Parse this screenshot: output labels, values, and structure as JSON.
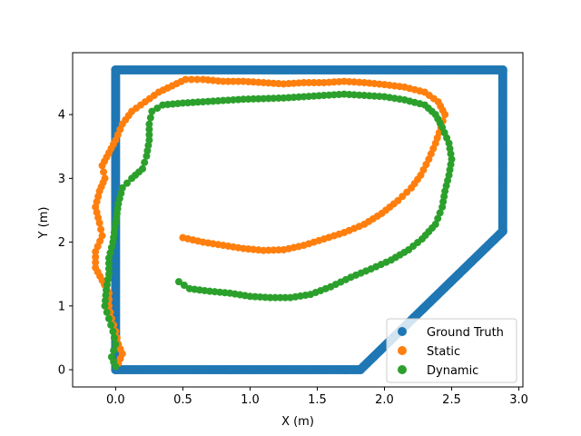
{
  "chart_data": {
    "type": "scatter",
    "title": "",
    "xlabel": "X (m)",
    "ylabel": "Y (m)",
    "xlim": [
      -0.32,
      3.03
    ],
    "ylim": [
      -0.27,
      4.97
    ],
    "x_ticks": [
      0.0,
      0.5,
      1.0,
      1.5,
      2.0,
      2.5,
      3.0
    ],
    "x_tick_labels": [
      "0.0",
      "0.5",
      "1.0",
      "1.5",
      "2.0",
      "2.5",
      "3.0"
    ],
    "y_ticks": [
      0,
      1,
      2,
      3,
      4
    ],
    "y_tick_labels": [
      "0",
      "1",
      "2",
      "3",
      "4"
    ],
    "grid": false,
    "legend_position": "lower-right",
    "series": [
      {
        "name": "Ground Truth",
        "color": "#1f77b4",
        "points": [
          [
            0.0,
            0.0
          ],
          [
            1.82,
            0.0
          ],
          [
            2.88,
            2.17
          ],
          [
            2.88,
            4.7
          ],
          [
            0.0,
            4.7
          ],
          [
            0.0,
            0.0
          ]
        ]
      },
      {
        "name": "Static",
        "color": "#ff7f0e",
        "points": [
          [
            0.5,
            2.07
          ],
          [
            0.65,
            2.0
          ],
          [
            0.8,
            1.95
          ],
          [
            0.95,
            1.9
          ],
          [
            1.1,
            1.87
          ],
          [
            1.25,
            1.88
          ],
          [
            1.4,
            1.95
          ],
          [
            1.55,
            2.05
          ],
          [
            1.7,
            2.15
          ],
          [
            1.85,
            2.28
          ],
          [
            1.98,
            2.45
          ],
          [
            2.1,
            2.65
          ],
          [
            2.2,
            2.85
          ],
          [
            2.27,
            3.05
          ],
          [
            2.33,
            3.3
          ],
          [
            2.38,
            3.55
          ],
          [
            2.42,
            3.8
          ],
          [
            2.45,
            4.0
          ],
          [
            2.4,
            4.2
          ],
          [
            2.3,
            4.35
          ],
          [
            2.15,
            4.43
          ],
          [
            2.0,
            4.47
          ],
          [
            1.85,
            4.5
          ],
          [
            1.7,
            4.52
          ],
          [
            1.55,
            4.5
          ],
          [
            1.4,
            4.5
          ],
          [
            1.25,
            4.48
          ],
          [
            1.1,
            4.5
          ],
          [
            0.95,
            4.52
          ],
          [
            0.8,
            4.52
          ],
          [
            0.65,
            4.55
          ],
          [
            0.52,
            4.55
          ],
          [
            0.42,
            4.45
          ],
          [
            0.32,
            4.35
          ],
          [
            0.22,
            4.2
          ],
          [
            0.12,
            4.05
          ],
          [
            0.05,
            3.85
          ],
          [
            0.0,
            3.6
          ],
          [
            -0.05,
            3.4
          ],
          [
            -0.1,
            3.2
          ],
          [
            -0.08,
            3.0
          ],
          [
            -0.12,
            2.8
          ],
          [
            -0.15,
            2.55
          ],
          [
            -0.12,
            2.3
          ],
          [
            -0.1,
            2.1
          ],
          [
            -0.15,
            1.85
          ],
          [
            -0.15,
            1.6
          ],
          [
            -0.1,
            1.4
          ],
          [
            -0.05,
            1.2
          ],
          [
            -0.05,
            1.0
          ],
          [
            -0.03,
            0.8
          ],
          [
            0.0,
            0.6
          ],
          [
            0.02,
            0.4
          ],
          [
            0.05,
            0.25
          ],
          [
            0.02,
            0.1
          ]
        ]
      },
      {
        "name": "Dynamic",
        "color": "#2ca02c",
        "points": [
          [
            0.47,
            1.38
          ],
          [
            0.55,
            1.27
          ],
          [
            0.7,
            1.23
          ],
          [
            0.85,
            1.2
          ],
          [
            1.0,
            1.15
          ],
          [
            1.15,
            1.13
          ],
          [
            1.3,
            1.13
          ],
          [
            1.45,
            1.18
          ],
          [
            1.6,
            1.3
          ],
          [
            1.75,
            1.45
          ],
          [
            1.9,
            1.58
          ],
          [
            2.05,
            1.72
          ],
          [
            2.18,
            1.88
          ],
          [
            2.28,
            2.05
          ],
          [
            2.38,
            2.28
          ],
          [
            2.43,
            2.55
          ],
          [
            2.45,
            2.8
          ],
          [
            2.48,
            3.05
          ],
          [
            2.5,
            3.3
          ],
          [
            2.48,
            3.55
          ],
          [
            2.43,
            3.8
          ],
          [
            2.38,
            4.0
          ],
          [
            2.3,
            4.15
          ],
          [
            2.15,
            4.23
          ],
          [
            2.0,
            4.28
          ],
          [
            1.85,
            4.3
          ],
          [
            1.7,
            4.32
          ],
          [
            1.55,
            4.3
          ],
          [
            1.4,
            4.28
          ],
          [
            1.25,
            4.26
          ],
          [
            1.1,
            4.25
          ],
          [
            0.95,
            4.24
          ],
          [
            0.8,
            4.22
          ],
          [
            0.65,
            4.2
          ],
          [
            0.5,
            4.18
          ],
          [
            0.35,
            4.15
          ],
          [
            0.27,
            4.05
          ],
          [
            0.25,
            3.85
          ],
          [
            0.25,
            3.6
          ],
          [
            0.23,
            3.35
          ],
          [
            0.2,
            3.15
          ],
          [
            0.12,
            3.0
          ],
          [
            0.05,
            2.85
          ],
          [
            0.02,
            2.6
          ],
          [
            0.0,
            2.3
          ],
          [
            -0.02,
            2.0
          ],
          [
            -0.05,
            1.75
          ],
          [
            -0.05,
            1.5
          ],
          [
            -0.07,
            1.25
          ],
          [
            -0.08,
            1.0
          ],
          [
            -0.05,
            0.8
          ],
          [
            -0.02,
            0.6
          ],
          [
            0.0,
            0.4
          ],
          [
            -0.03,
            0.2
          ],
          [
            0.0,
            0.05
          ]
        ]
      }
    ]
  }
}
